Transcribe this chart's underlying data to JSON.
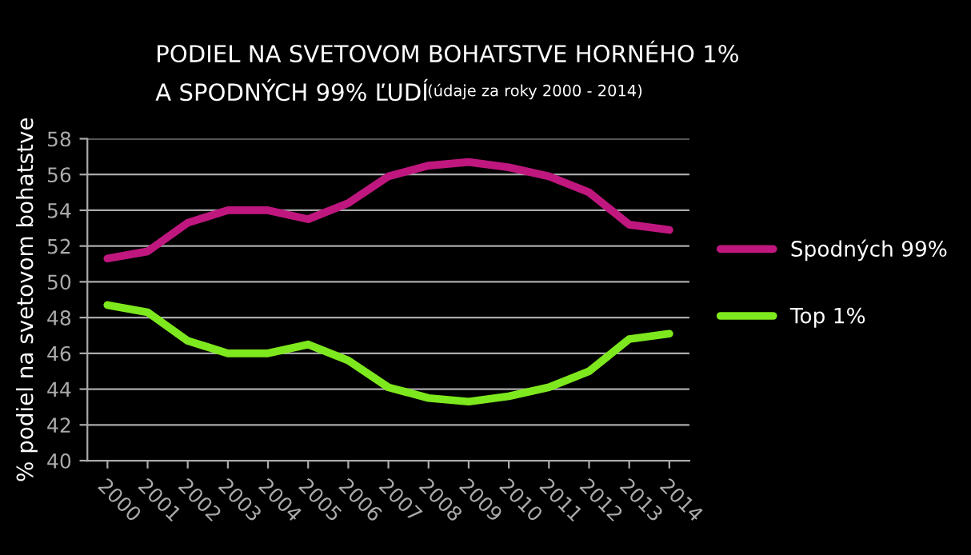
{
  "chart_data": {
    "type": "line",
    "title": "PODIEL NA SVETOVOM BOHATSTVE HORNÉHO 1%\nA SPODNÝCH 99% ĽUDÍ",
    "subtitle": "(údaje za roky 2000 - 2014)",
    "ylabel": "% podiel na svetovom bohatstve",
    "categories": [
      "2000",
      "2001",
      "2002",
      "2003",
      "2004",
      "2005",
      "2006",
      "2007",
      "2008",
      "2009",
      "2010",
      "2011",
      "2012",
      "2013",
      "2014"
    ],
    "series": [
      {
        "name": "Spodných 99%",
        "color": "#c0177f",
        "values": [
          51.3,
          51.7,
          53.3,
          54.0,
          54.0,
          53.5,
          54.4,
          55.9,
          56.5,
          56.7,
          56.4,
          55.9,
          55.0,
          53.2,
          52.9
        ]
      },
      {
        "name": "Top 1%",
        "color": "#7ee81e",
        "values": [
          48.7,
          48.3,
          46.7,
          46.0,
          46.0,
          46.5,
          45.6,
          44.1,
          43.5,
          43.3,
          43.6,
          44.1,
          45.0,
          46.8,
          47.1
        ]
      }
    ],
    "ylim": [
      40,
      58
    ],
    "yticks": [
      40,
      42,
      44,
      46,
      48,
      50,
      52,
      54,
      56,
      58
    ],
    "grid": "y",
    "legend": "right",
    "marker": "none",
    "line_style": "solid"
  }
}
